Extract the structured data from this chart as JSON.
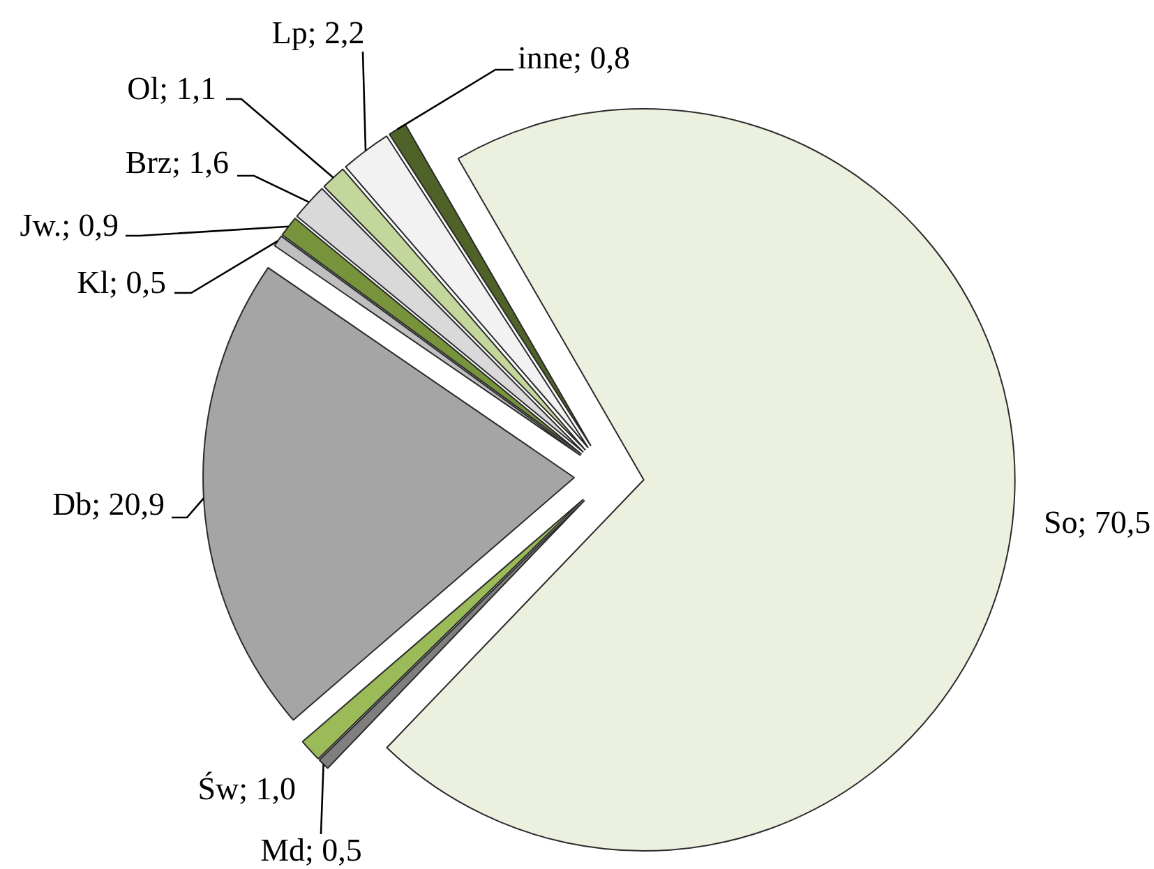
{
  "chart_data": {
    "type": "pie",
    "categories": [
      "So",
      "Md",
      "Św",
      "Db",
      "Kl",
      "Jw.",
      "Brz",
      "Ol",
      "Lp",
      "inne"
    ],
    "values": [
      70.5,
      0.5,
      1.0,
      20.9,
      0.5,
      0.9,
      1.6,
      1.1,
      2.2,
      0.8
    ],
    "colors": [
      "#ebf1de",
      "#7f7f7f",
      "#9bbb59",
      "#a5a5a5",
      "#bfbfbf",
      "#77933c",
      "#d9d9d9",
      "#c3d69b",
      "#f2f2f2",
      "#4f6228"
    ],
    "value_labels": [
      "70,5",
      "0,5",
      "1,0",
      "20,9",
      "0,5",
      "0,9",
      "1,6",
      "1,1",
      "2,2",
      "0,8"
    ]
  }
}
